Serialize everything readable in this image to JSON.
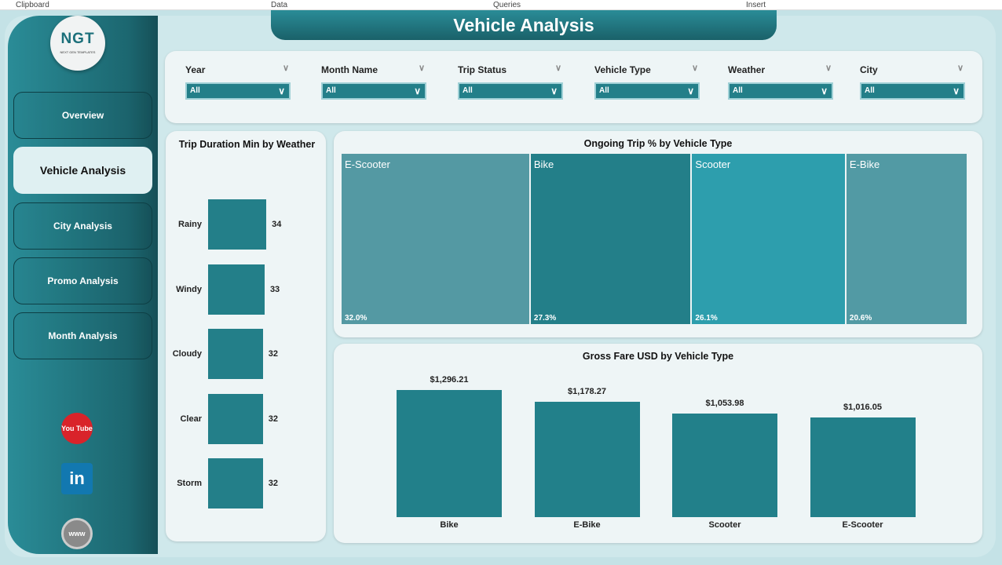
{
  "ribbon": [
    "Clipboard",
    "Data",
    "Queries",
    "Insert"
  ],
  "logo": {
    "text": "NGT",
    "subtitle": "NEXT GEN TEMPLATES"
  },
  "title": "Vehicle Analysis",
  "nav": [
    {
      "label": "Overview"
    },
    {
      "label": "Vehicle Analysis",
      "active": true
    },
    {
      "label": "City Analysis"
    },
    {
      "label": "Promo Analysis"
    },
    {
      "label": "Month Analysis"
    }
  ],
  "social": [
    {
      "icon": "youtube-icon",
      "label": "You Tube",
      "color": "#d9232a"
    },
    {
      "icon": "linkedin-icon",
      "label": "in",
      "color": "#1278b0"
    },
    {
      "icon": "globe-icon",
      "label": "www",
      "color": "#8a8a8a"
    }
  ],
  "slicers": [
    {
      "label": "Year",
      "value": "All"
    },
    {
      "label": "Month Name",
      "value": "All"
    },
    {
      "label": "Trip Status",
      "value": "All"
    },
    {
      "label": "Vehicle Type",
      "value": "All"
    },
    {
      "label": "Weather",
      "value": "All"
    },
    {
      "label": "City",
      "value": "All"
    }
  ],
  "chart_data": [
    {
      "type": "bar",
      "orientation": "horizontal",
      "title": "Trip Duration Min by Weather",
      "categories": [
        "Rainy",
        "Windy",
        "Cloudy",
        "Clear",
        "Storm"
      ],
      "values": [
        34,
        33,
        32,
        32,
        32
      ],
      "color": "#237f89"
    },
    {
      "type": "treemap",
      "title": "Ongoing Trip % by Vehicle Type",
      "categories": [
        "E-Scooter",
        "Bike",
        "Scooter",
        "E-Bike"
      ],
      "values": [
        32.0,
        27.3,
        26.1,
        20.6
      ],
      "labels": [
        "32.0%",
        "27.3%",
        "26.1%",
        "20.6%"
      ],
      "colors": [
        "#5499a3",
        "#237f89",
        "#2d9ead",
        "#529aa4"
      ]
    },
    {
      "type": "bar",
      "title": "Gross Fare USD by Vehicle Type",
      "categories": [
        "Bike",
        "E-Bike",
        "Scooter",
        "E-Scooter"
      ],
      "values": [
        1296.21,
        1178.27,
        1053.98,
        1016.05
      ],
      "labels": [
        "$1,296.21",
        "$1,178.27",
        "$1,053.98",
        "$1,016.05"
      ],
      "color": "#22808a"
    }
  ]
}
